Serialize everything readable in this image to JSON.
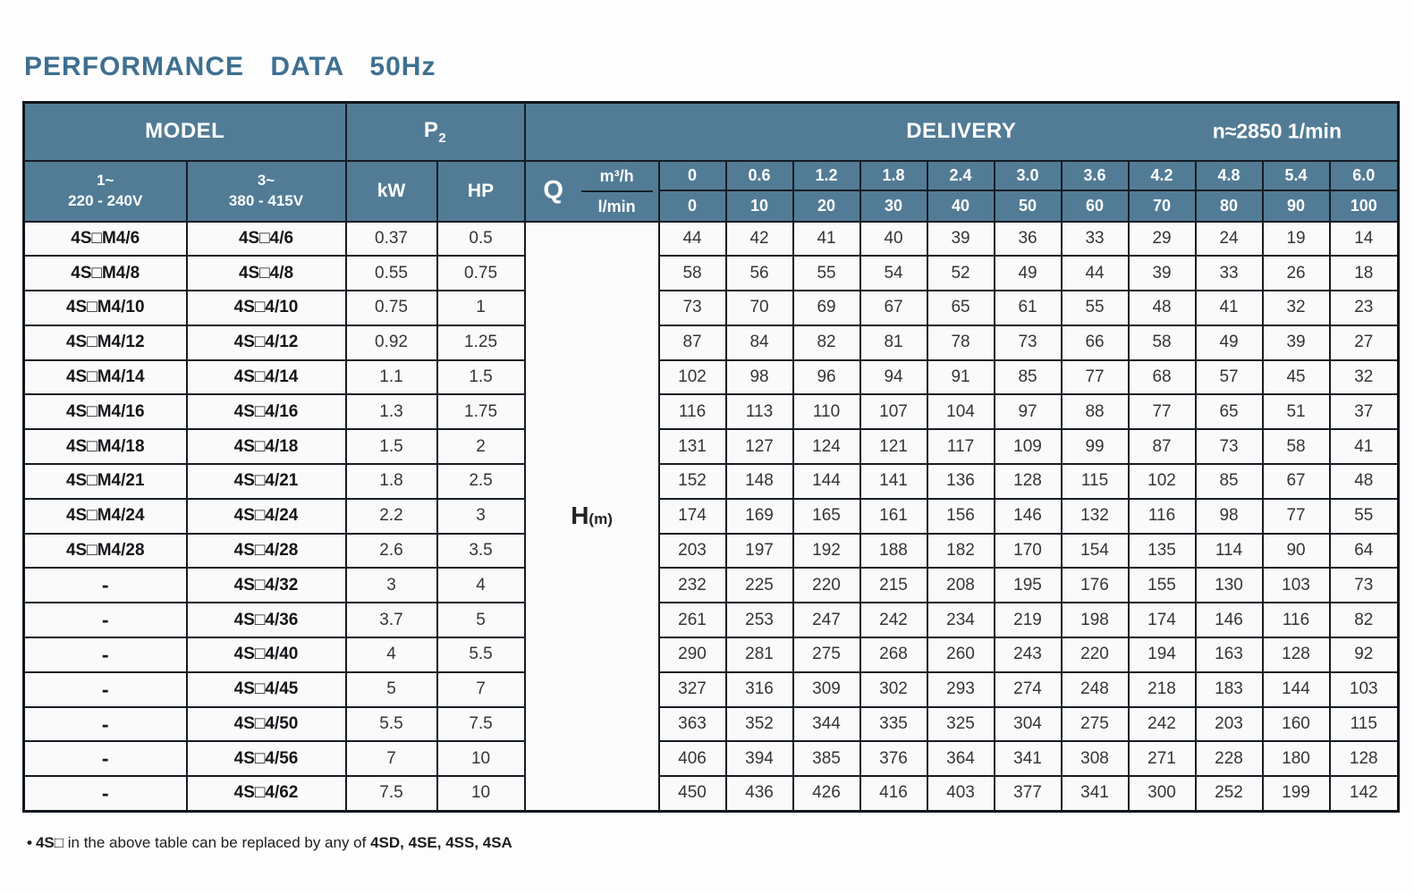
{
  "page": {
    "title": "PERFORMANCE DATA 50Hz",
    "footnote": {
      "bullet": "•",
      "bold_lead": "4S□",
      "middle": " in the above table can be replaced by any of ",
      "bold_models": "4SD, 4SE, 4SS, 4SA"
    }
  },
  "colors": {
    "header_bg": "#527c96",
    "title_text": "#3e7090",
    "grid_border": "#161c24",
    "cell_bg": "#fafafa"
  },
  "table": {
    "header": {
      "model": "MODEL",
      "p2_base": "P",
      "p2_sub": "2",
      "delivery": "DELIVERY",
      "speed": "n≈2850 1/min",
      "single_phase": {
        "line1": "1~",
        "line2": "220 - 240V"
      },
      "three_phase": {
        "line1": "3~",
        "line2": "380 - 415V"
      },
      "kw": "kW",
      "hp": "HP",
      "q": "Q",
      "unit_top": "m³/h",
      "unit_bottom": "l/min",
      "head_label_base": "H",
      "head_label_sub": "(m)"
    },
    "flow_m3h": [
      "0",
      "0.6",
      "1.2",
      "1.8",
      "2.4",
      "3.0",
      "3.6",
      "4.2",
      "4.8",
      "5.4",
      "6.0"
    ],
    "flow_lmin": [
      "0",
      "10",
      "20",
      "30",
      "40",
      "50",
      "60",
      "70",
      "80",
      "90",
      "100"
    ],
    "rows": [
      {
        "model_1ph": "4S□M4/6",
        "model_3ph": "4S□4/6",
        "kw": "0.37",
        "hp": "0.5",
        "heads": [
          "44",
          "42",
          "41",
          "40",
          "39",
          "36",
          "33",
          "29",
          "24",
          "19",
          "14"
        ]
      },
      {
        "model_1ph": "4S□M4/8",
        "model_3ph": "4S□4/8",
        "kw": "0.55",
        "hp": "0.75",
        "heads": [
          "58",
          "56",
          "55",
          "54",
          "52",
          "49",
          "44",
          "39",
          "33",
          "26",
          "18"
        ]
      },
      {
        "model_1ph": "4S□M4/10",
        "model_3ph": "4S□4/10",
        "kw": "0.75",
        "hp": "1",
        "heads": [
          "73",
          "70",
          "69",
          "67",
          "65",
          "61",
          "55",
          "48",
          "41",
          "32",
          "23"
        ]
      },
      {
        "model_1ph": "4S□M4/12",
        "model_3ph": "4S□4/12",
        "kw": "0.92",
        "hp": "1.25",
        "heads": [
          "87",
          "84",
          "82",
          "81",
          "78",
          "73",
          "66",
          "58",
          "49",
          "39",
          "27"
        ]
      },
      {
        "model_1ph": "4S□M4/14",
        "model_3ph": "4S□4/14",
        "kw": "1.1",
        "hp": "1.5",
        "heads": [
          "102",
          "98",
          "96",
          "94",
          "91",
          "85",
          "77",
          "68",
          "57",
          "45",
          "32"
        ]
      },
      {
        "model_1ph": "4S□M4/16",
        "model_3ph": "4S□4/16",
        "kw": "1.3",
        "hp": "1.75",
        "heads": [
          "116",
          "113",
          "110",
          "107",
          "104",
          "97",
          "88",
          "77",
          "65",
          "51",
          "37"
        ]
      },
      {
        "model_1ph": "4S□M4/18",
        "model_3ph": "4S□4/18",
        "kw": "1.5",
        "hp": "2",
        "heads": [
          "131",
          "127",
          "124",
          "121",
          "117",
          "109",
          "99",
          "87",
          "73",
          "58",
          "41"
        ]
      },
      {
        "model_1ph": "4S□M4/21",
        "model_3ph": "4S□4/21",
        "kw": "1.8",
        "hp": "2.5",
        "heads": [
          "152",
          "148",
          "144",
          "141",
          "136",
          "128",
          "115",
          "102",
          "85",
          "67",
          "48"
        ]
      },
      {
        "model_1ph": "4S□M4/24",
        "model_3ph": "4S□4/24",
        "kw": "2.2",
        "hp": "3",
        "heads": [
          "174",
          "169",
          "165",
          "161",
          "156",
          "146",
          "132",
          "116",
          "98",
          "77",
          "55"
        ]
      },
      {
        "model_1ph": "4S□M4/28",
        "model_3ph": "4S□4/28",
        "kw": "2.6",
        "hp": "3.5",
        "heads": [
          "203",
          "197",
          "192",
          "188",
          "182",
          "170",
          "154",
          "135",
          "114",
          "90",
          "64"
        ]
      },
      {
        "model_1ph": "-",
        "model_3ph": "4S□4/32",
        "kw": "3",
        "hp": "4",
        "heads": [
          "232",
          "225",
          "220",
          "215",
          "208",
          "195",
          "176",
          "155",
          "130",
          "103",
          "73"
        ]
      },
      {
        "model_1ph": "-",
        "model_3ph": "4S□4/36",
        "kw": "3.7",
        "hp": "5",
        "heads": [
          "261",
          "253",
          "247",
          "242",
          "234",
          "219",
          "198",
          "174",
          "146",
          "116",
          "82"
        ]
      },
      {
        "model_1ph": "-",
        "model_3ph": "4S□4/40",
        "kw": "4",
        "hp": "5.5",
        "heads": [
          "290",
          "281",
          "275",
          "268",
          "260",
          "243",
          "220",
          "194",
          "163",
          "128",
          "92"
        ]
      },
      {
        "model_1ph": "-",
        "model_3ph": "4S□4/45",
        "kw": "5",
        "hp": "7",
        "heads": [
          "327",
          "316",
          "309",
          "302",
          "293",
          "274",
          "248",
          "218",
          "183",
          "144",
          "103"
        ]
      },
      {
        "model_1ph": "-",
        "model_3ph": "4S□4/50",
        "kw": "5.5",
        "hp": "7.5",
        "heads": [
          "363",
          "352",
          "344",
          "335",
          "325",
          "304",
          "275",
          "242",
          "203",
          "160",
          "115"
        ]
      },
      {
        "model_1ph": "-",
        "model_3ph": "4S□4/56",
        "kw": "7",
        "hp": "10",
        "heads": [
          "406",
          "394",
          "385",
          "376",
          "364",
          "341",
          "308",
          "271",
          "228",
          "180",
          "128"
        ]
      },
      {
        "model_1ph": "-",
        "model_3ph": "4S□4/62",
        "kw": "7.5",
        "hp": "10",
        "heads": [
          "450",
          "436",
          "426",
          "416",
          "403",
          "377",
          "341",
          "300",
          "252",
          "199",
          "142"
        ]
      }
    ]
  }
}
